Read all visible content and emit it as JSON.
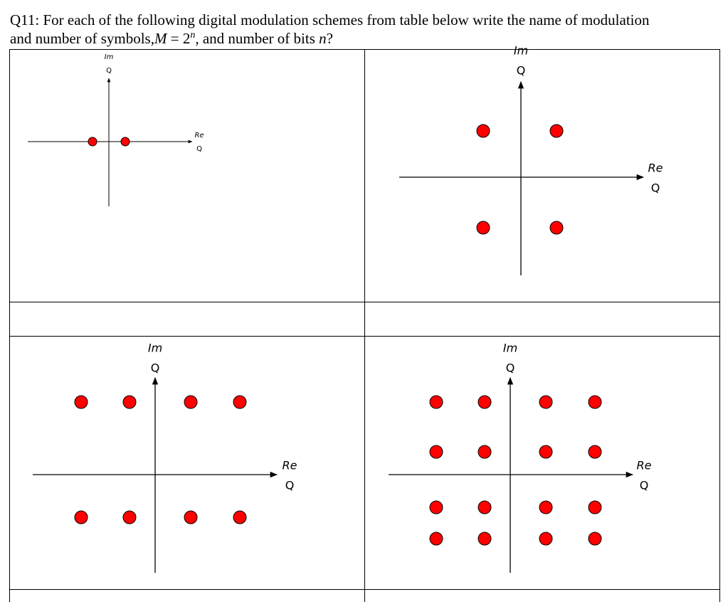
{
  "question": {
    "line1": "Q11: For each of the following digital modulation schemes from table below write the name of modulation",
    "line2": [
      "and number of symbols,",
      "M",
      " = 2",
      "n",
      ", and number of bits ",
      "n",
      "?"
    ]
  },
  "panels": [
    {
      "im": "Im",
      "im_sub": "Q",
      "re": "Re",
      "re_sub": "Q"
    },
    {
      "im": "Im",
      "im_sub": "Q",
      "re": "Re",
      "re_sub": "Q"
    },
    {
      "im": "Im",
      "im_sub": "Q",
      "re": "Re",
      "re_sub": "Q"
    },
    {
      "im": "Im",
      "im_sub": "Q",
      "re": "Re",
      "re_sub": "Q"
    }
  ]
}
